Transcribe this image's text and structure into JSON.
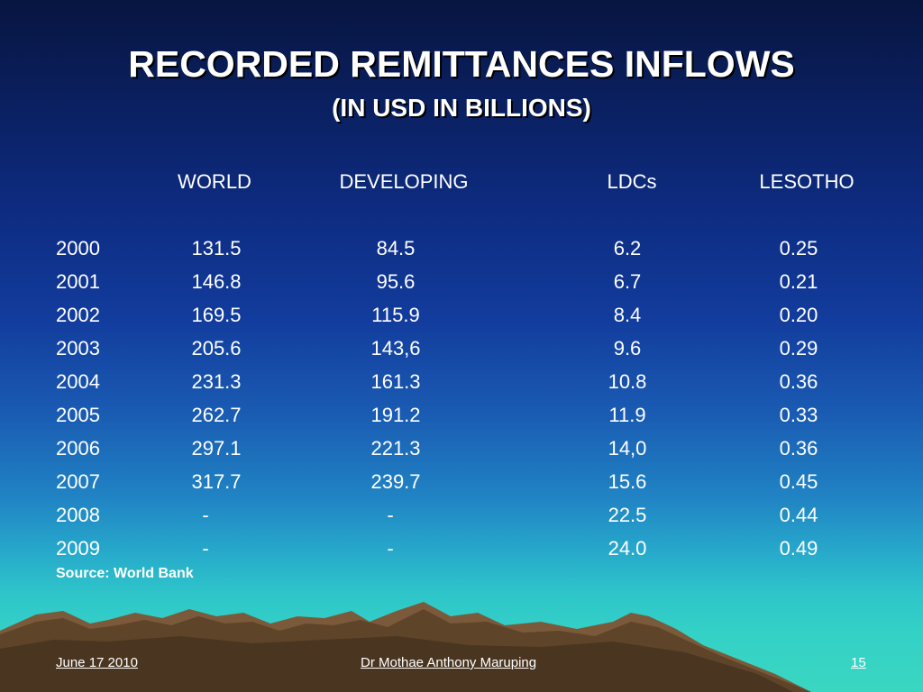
{
  "slide": {
    "title": "RECORDED REMITTANCES INFLOWS",
    "subtitle": "(IN USD IN BILLIONS)",
    "source": "Source: World Bank"
  },
  "table": {
    "headers": [
      "WORLD",
      "DEVELOPING",
      "LDCs",
      "LESOTHO"
    ],
    "rows": [
      {
        "year": "2000",
        "world": "131.5",
        "developing": "84.5",
        "ldcs": "6.2",
        "lesotho": "0.25"
      },
      {
        "year": "2001",
        "world": "146.8",
        "developing": "95.6",
        "ldcs": "6.7",
        "lesotho": "0.21"
      },
      {
        "year": "2002",
        "world": "169.5",
        "developing": "115.9",
        "ldcs": "8.4",
        "lesotho": "0.20"
      },
      {
        "year": "2003",
        "world": "205.6",
        "developing": "143,6",
        "ldcs": "9.6",
        "lesotho": "0.29"
      },
      {
        "year": "2004",
        "world": "231.3",
        "developing": "161.3",
        "ldcs": "10.8",
        "lesotho": "0.36"
      },
      {
        "year": "2005",
        "world": "262.7",
        "developing": "191.2",
        "ldcs": "11.9",
        "lesotho": "0.33"
      },
      {
        "year": "2006",
        "world": "297.1",
        "developing": "221.3",
        "ldcs": "14,0",
        "lesotho": "0.36"
      },
      {
        "year": "2007",
        "world": "317.7",
        "developing": "239.7",
        "ldcs": "15.6",
        "lesotho": "0.45"
      },
      {
        "year": "2008",
        "world": "-",
        "developing": "-",
        "ldcs": "22.5",
        "lesotho": "0.44"
      },
      {
        "year": "2009",
        "world": "-",
        "developing": "-",
        "ldcs": "24.0",
        "lesotho": "0.49"
      }
    ]
  },
  "footer": {
    "date": "June 17 2010",
    "author": "Dr  Mothae Anthony Maruping",
    "page": "15"
  },
  "colors": {
    "text": "#ffffff",
    "mountain": "#7a5a3a"
  }
}
